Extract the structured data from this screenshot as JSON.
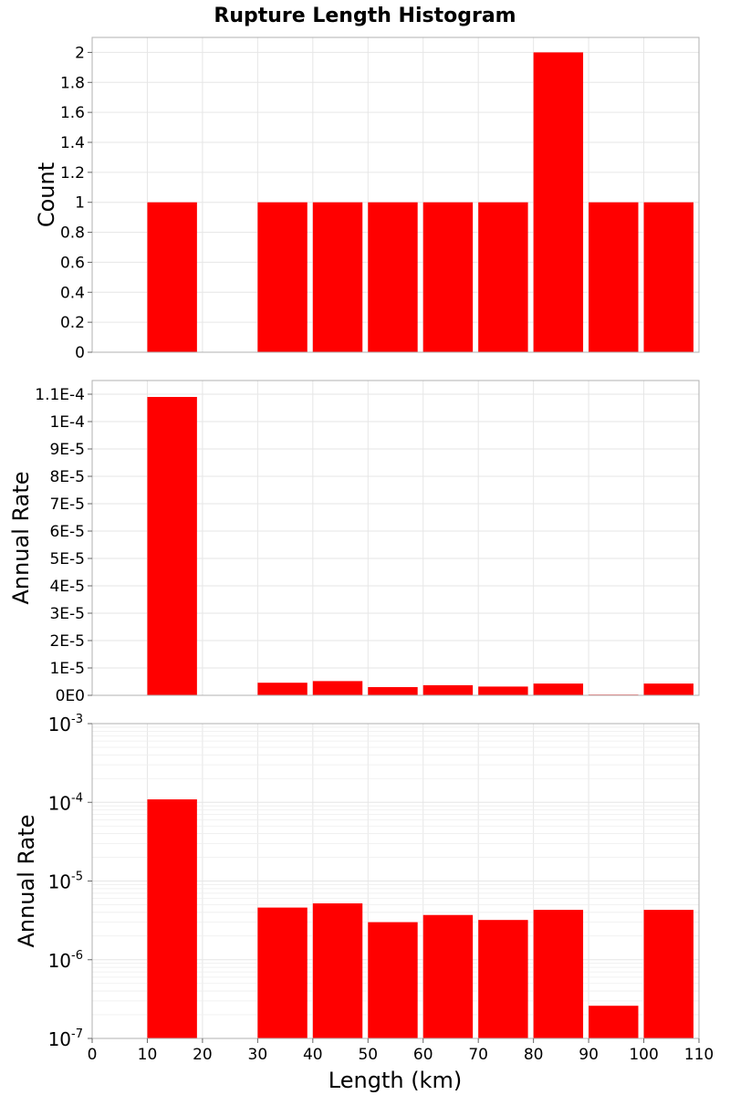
{
  "chart_data": {
    "title": "Rupture Length Histogram",
    "xlabel": "Length (km)",
    "xlim": [
      0,
      110
    ],
    "x_ticks": [
      "0",
      "10",
      "20",
      "30",
      "40",
      "50",
      "60",
      "70",
      "80",
      "90",
      "100",
      "110"
    ],
    "bar_color": "#ff0000",
    "panels": [
      {
        "type": "bar",
        "ylabel": "Count",
        "scale": "linear",
        "ylim": [
          0,
          2.1
        ],
        "y_ticks": [
          {
            "v": 0,
            "label": "0"
          },
          {
            "v": 0.2,
            "label": "0.2"
          },
          {
            "v": 0.4,
            "label": "0.4"
          },
          {
            "v": 0.6,
            "label": "0.6"
          },
          {
            "v": 0.8,
            "label": "0.8"
          },
          {
            "v": 1,
            "label": "1"
          },
          {
            "v": 1.2,
            "label": "1.2"
          },
          {
            "v": 1.4,
            "label": "1.4"
          },
          {
            "v": 1.6,
            "label": "1.6"
          },
          {
            "v": 1.8,
            "label": "1.8"
          },
          {
            "v": 2,
            "label": "2"
          }
        ],
        "bins": [
          {
            "x0": 10,
            "x1": 19,
            "y": 1
          },
          {
            "x0": 30,
            "x1": 39,
            "y": 1
          },
          {
            "x0": 40,
            "x1": 49,
            "y": 1
          },
          {
            "x0": 50,
            "x1": 59,
            "y": 1
          },
          {
            "x0": 60,
            "x1": 69,
            "y": 1
          },
          {
            "x0": 70,
            "x1": 79,
            "y": 1
          },
          {
            "x0": 80,
            "x1": 89,
            "y": 2
          },
          {
            "x0": 90,
            "x1": 99,
            "y": 1
          },
          {
            "x0": 100,
            "x1": 109,
            "y": 1
          }
        ]
      },
      {
        "type": "bar",
        "ylabel": "Annual Rate",
        "scale": "linear",
        "ylim": [
          0,
          0.000115
        ],
        "y_ticks": [
          {
            "v": 0,
            "label": "0E0"
          },
          {
            "v": 1e-05,
            "label": "1E-5"
          },
          {
            "v": 2e-05,
            "label": "2E-5"
          },
          {
            "v": 3e-05,
            "label": "3E-5"
          },
          {
            "v": 4e-05,
            "label": "4E-5"
          },
          {
            "v": 5e-05,
            "label": "5E-5"
          },
          {
            "v": 6e-05,
            "label": "6E-5"
          },
          {
            "v": 7e-05,
            "label": "7E-5"
          },
          {
            "v": 8e-05,
            "label": "8E-5"
          },
          {
            "v": 9e-05,
            "label": "9E-5"
          },
          {
            "v": 0.0001,
            "label": "1E-4"
          },
          {
            "v": 0.00011,
            "label": "1.1E-4"
          }
        ],
        "bins": [
          {
            "x0": 10,
            "x1": 19,
            "y": 0.000109
          },
          {
            "x0": 30,
            "x1": 39,
            "y": 4.6e-06
          },
          {
            "x0": 40,
            "x1": 49,
            "y": 5.2e-06
          },
          {
            "x0": 50,
            "x1": 59,
            "y": 3e-06
          },
          {
            "x0": 60,
            "x1": 69,
            "y": 3.7e-06
          },
          {
            "x0": 70,
            "x1": 79,
            "y": 3.2e-06
          },
          {
            "x0": 80,
            "x1": 89,
            "y": 4.3e-06
          },
          {
            "x0": 90,
            "x1": 99,
            "y": 2.6e-07
          },
          {
            "x0": 100,
            "x1": 109,
            "y": 4.3e-06
          }
        ]
      },
      {
        "type": "bar",
        "ylabel": "Annual Rate",
        "scale": "log",
        "ylim": [
          1e-07,
          0.001
        ],
        "y_ticks": [
          {
            "v": 1e-07,
            "base": "10",
            "exp": "-7"
          },
          {
            "v": 1e-06,
            "base": "10",
            "exp": "-6"
          },
          {
            "v": 1e-05,
            "base": "10",
            "exp": "-5"
          },
          {
            "v": 0.0001,
            "base": "10",
            "exp": "-4"
          },
          {
            "v": 0.001,
            "base": "10",
            "exp": "-3"
          }
        ],
        "bins": [
          {
            "x0": 10,
            "x1": 19,
            "y": 0.000109
          },
          {
            "x0": 30,
            "x1": 39,
            "y": 4.6e-06
          },
          {
            "x0": 40,
            "x1": 49,
            "y": 5.2e-06
          },
          {
            "x0": 50,
            "x1": 59,
            "y": 3e-06
          },
          {
            "x0": 60,
            "x1": 69,
            "y": 3.7e-06
          },
          {
            "x0": 70,
            "x1": 79,
            "y": 3.2e-06
          },
          {
            "x0": 80,
            "x1": 89,
            "y": 4.3e-06
          },
          {
            "x0": 90,
            "x1": 99,
            "y": 2.6e-07
          },
          {
            "x0": 100,
            "x1": 109,
            "y": 4.3e-06
          }
        ]
      }
    ]
  }
}
